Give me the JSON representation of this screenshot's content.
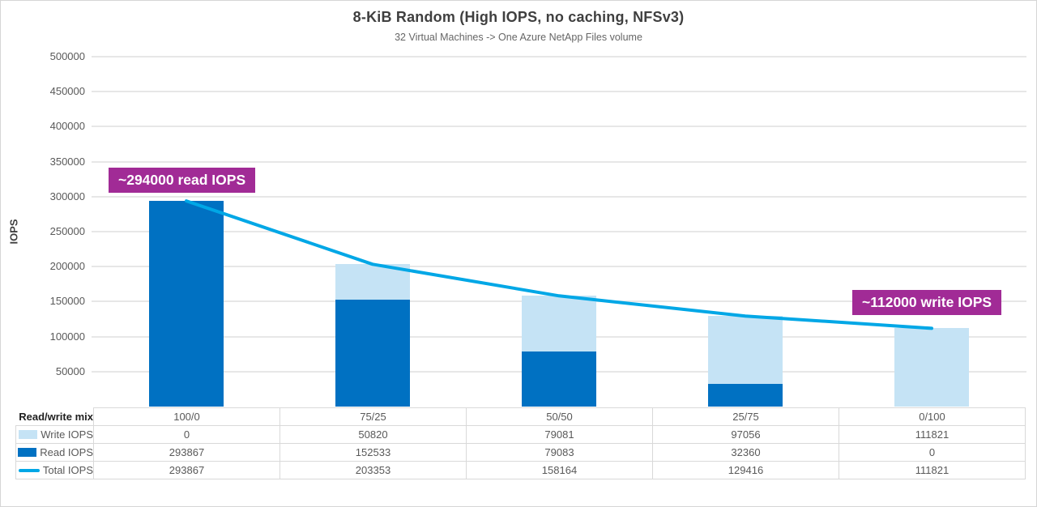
{
  "title": "8-KiB Random (High IOPS, no caching, NFSv3)",
  "subtitle": "32 Virtual Machines -> One Azure NetApp Files volume",
  "annotations": [
    {
      "text": "~294000 read IOPS"
    },
    {
      "text": "~112000 write IOPS"
    }
  ],
  "colors": {
    "read_bar": "#0071C2",
    "write_bar": "#C5E3F5",
    "total_line": "#00A7E6",
    "annotation_bg": "#A12B96",
    "gridline": "#E7E7E7",
    "table_border": "#D9D9D9"
  },
  "chart_data": {
    "type": "bar",
    "subtype": "stacked-bars-with-line-overlay",
    "title": "8-KiB Random (High IOPS, no caching, NFSv3)",
    "subtitle": "32 Virtual Machines -> One Azure NetApp Files volume",
    "xlabel": "Read/write mix",
    "ylabel": "IOPS",
    "ylim": [
      0,
      500000
    ],
    "ytick_step": 50000,
    "yticks": [
      "50000",
      "100000",
      "150000",
      "200000",
      "250000",
      "300000",
      "350000",
      "400000",
      "450000",
      "500000"
    ],
    "grid": true,
    "legend_position": "data-table-below-chart",
    "categories": [
      "100/0",
      "75/25",
      "50/50",
      "25/75",
      "0/100"
    ],
    "series": [
      {
        "name": "Write IOPS",
        "type": "bar",
        "color": "#C5E3F5",
        "values": [
          0,
          50820,
          79081,
          97056,
          111821
        ]
      },
      {
        "name": "Read IOPS",
        "type": "bar",
        "color": "#0071C2",
        "values": [
          293867,
          152533,
          79083,
          32360,
          0
        ]
      },
      {
        "name": "Total IOPS",
        "type": "line",
        "color": "#00A7E6",
        "values": [
          293867,
          203353,
          158164,
          129416,
          111821
        ]
      }
    ]
  }
}
